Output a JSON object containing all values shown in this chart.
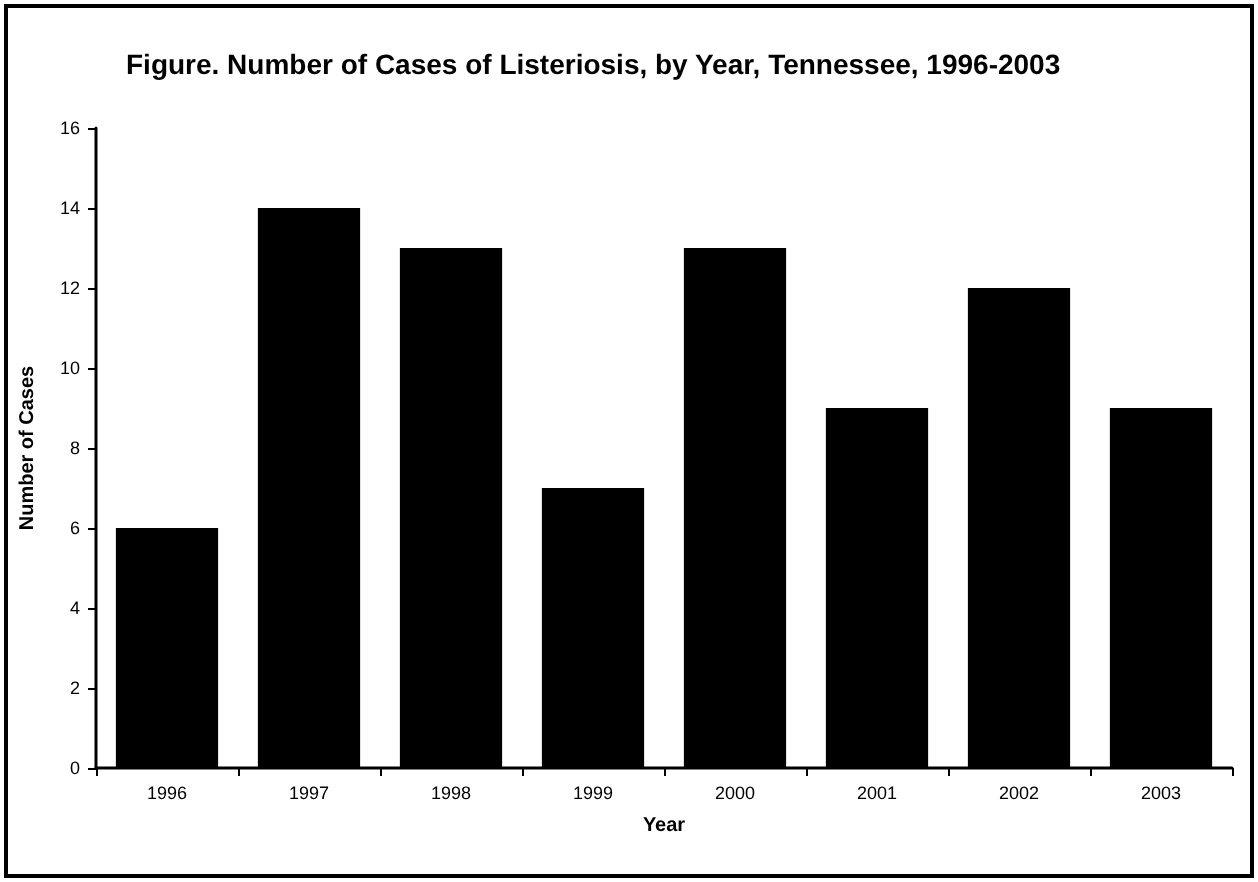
{
  "chart_data": {
    "type": "bar",
    "title": "Figure. Number of Cases of Listeriosis, by Year, Tennessee, 1996-2003",
    "xlabel": "Year",
    "ylabel": "Number of Cases",
    "categories": [
      "1996",
      "1997",
      "1998",
      "1999",
      "2000",
      "2001",
      "2002",
      "2003"
    ],
    "values": [
      6,
      14,
      13,
      7,
      13,
      9,
      12,
      9
    ],
    "color": "#000000",
    "ylim": [
      0,
      16
    ],
    "yticks": [
      0,
      2,
      4,
      6,
      8,
      10,
      12,
      14,
      16
    ],
    "grid": false
  }
}
